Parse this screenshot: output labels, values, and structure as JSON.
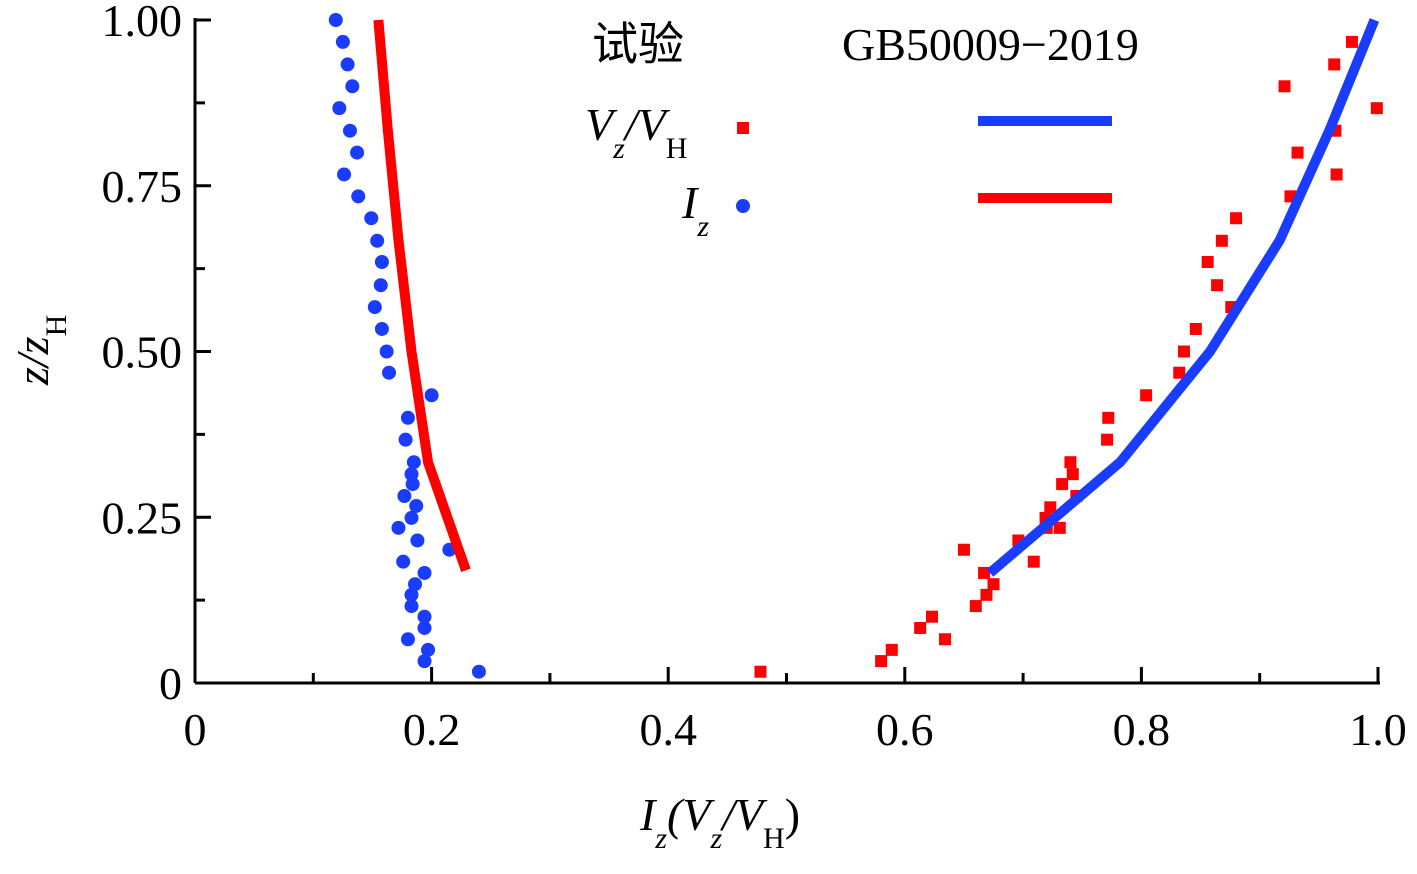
{
  "chart_data": {
    "type": "scatter",
    "title": "",
    "xlabel": {
      "main": "I",
      "sub1": "z",
      "paren_open": "(V",
      "sub2": "z",
      "slash": "/V",
      "sub3": "H",
      "paren_close": ")"
    },
    "ylabel": {
      "main": "z/z",
      "sub": "H"
    },
    "xlim": [
      0,
      1.0
    ],
    "ylim": [
      0,
      1.0
    ],
    "x_ticks": [
      {
        "v": 0,
        "label": "0"
      },
      {
        "v": 0.2,
        "label": "0.2"
      },
      {
        "v": 0.4,
        "label": "0.4"
      },
      {
        "v": 0.6,
        "label": "0.6"
      },
      {
        "v": 0.8,
        "label": "0.8"
      },
      {
        "v": 1.0,
        "label": "1.0"
      }
    ],
    "y_ticks": [
      {
        "v": 0,
        "label": "0"
      },
      {
        "v": 0.25,
        "label": "0.25"
      },
      {
        "v": 0.5,
        "label": "0.50"
      },
      {
        "v": 0.75,
        "label": "0.75"
      },
      {
        "v": 1.0,
        "label": "1.00"
      }
    ],
    "grid": false,
    "legend": {
      "placement": "top-center",
      "col_test": "试验",
      "col_code": "GB50009−2019",
      "rows": [
        {
          "main": "V",
          "sub1": "z",
          "slash": "/V",
          "sub2": "H"
        },
        {
          "main": "I",
          "sub1": "z"
        }
      ]
    },
    "colors": {
      "red": "#ff0000",
      "blue": "#1a3cff"
    },
    "series": [
      {
        "name": "Vz/VH 试验",
        "kind": "square",
        "color": "#ff0000",
        "points": [
          [
            0.478,
            0.017
          ],
          [
            0.58,
            0.033
          ],
          [
            0.589,
            0.05
          ],
          [
            0.613,
            0.083
          ],
          [
            0.623,
            0.1
          ],
          [
            0.634,
            0.066
          ],
          [
            0.66,
            0.116
          ],
          [
            0.669,
            0.133
          ],
          [
            0.675,
            0.149
          ],
          [
            0.667,
            0.166
          ],
          [
            0.65,
            0.201
          ],
          [
            0.709,
            0.183
          ],
          [
            0.696,
            0.215
          ],
          [
            0.72,
            0.234
          ],
          [
            0.719,
            0.249
          ],
          [
            0.723,
            0.265
          ],
          [
            0.731,
            0.234
          ],
          [
            0.733,
            0.3
          ],
          [
            0.74,
            0.333
          ],
          [
            0.742,
            0.315
          ],
          [
            0.745,
            0.282
          ],
          [
            0.772,
            0.4
          ],
          [
            0.771,
            0.367
          ],
          [
            0.804,
            0.434
          ],
          [
            0.832,
            0.468
          ],
          [
            0.836,
            0.5
          ],
          [
            0.846,
            0.534
          ],
          [
            0.856,
            0.635
          ],
          [
            0.864,
            0.6
          ],
          [
            0.868,
            0.667
          ],
          [
            0.88,
            0.701
          ],
          [
            0.876,
            0.567
          ],
          [
            0.926,
            0.734
          ],
          [
            0.932,
            0.8
          ],
          [
            0.965,
            0.767
          ],
          [
            0.964,
            0.833
          ],
          [
            0.963,
            0.933
          ],
          [
            0.921,
            0.9
          ],
          [
            0.978,
            0.967
          ],
          [
            0.999,
            0.867
          ]
        ]
      },
      {
        "name": "Iz 试验",
        "kind": "dot",
        "color": "#1a3cff",
        "points": [
          [
            0.119,
            1.0
          ],
          [
            0.125,
            0.967
          ],
          [
            0.129,
            0.933
          ],
          [
            0.133,
            0.9
          ],
          [
            0.122,
            0.867
          ],
          [
            0.131,
            0.833
          ],
          [
            0.137,
            0.8
          ],
          [
            0.126,
            0.767
          ],
          [
            0.138,
            0.734
          ],
          [
            0.149,
            0.701
          ],
          [
            0.154,
            0.667
          ],
          [
            0.158,
            0.635
          ],
          [
            0.157,
            0.6
          ],
          [
            0.152,
            0.567
          ],
          [
            0.158,
            0.534
          ],
          [
            0.162,
            0.5
          ],
          [
            0.164,
            0.468
          ],
          [
            0.2,
            0.434
          ],
          [
            0.18,
            0.4
          ],
          [
            0.178,
            0.367
          ],
          [
            0.185,
            0.333
          ],
          [
            0.183,
            0.315
          ],
          [
            0.184,
            0.3
          ],
          [
            0.177,
            0.282
          ],
          [
            0.187,
            0.267
          ],
          [
            0.183,
            0.249
          ],
          [
            0.172,
            0.234
          ],
          [
            0.188,
            0.215
          ],
          [
            0.215,
            0.201
          ],
          [
            0.176,
            0.183
          ],
          [
            0.194,
            0.166
          ],
          [
            0.186,
            0.149
          ],
          [
            0.183,
            0.133
          ],
          [
            0.183,
            0.116
          ],
          [
            0.194,
            0.1
          ],
          [
            0.194,
            0.083
          ],
          [
            0.18,
            0.066
          ],
          [
            0.197,
            0.05
          ],
          [
            0.194,
            0.033
          ],
          [
            0.24,
            0.017
          ]
        ]
      },
      {
        "name": "Vz/VH GB50009-2019",
        "kind": "line",
        "color": "#1a3cff",
        "points": [
          [
            0.672,
            0.166
          ],
          [
            0.782,
            0.333
          ],
          [
            0.858,
            0.5
          ],
          [
            0.917,
            0.668
          ],
          [
            0.959,
            0.834
          ],
          [
            0.997,
            1.0
          ]
        ]
      },
      {
        "name": "Iz GB50009-2019",
        "kind": "line",
        "color": "#ff0000",
        "points": [
          [
            0.229,
            0.17
          ],
          [
            0.197,
            0.333
          ],
          [
            0.183,
            0.5
          ],
          [
            0.172,
            0.668
          ],
          [
            0.163,
            0.834
          ],
          [
            0.155,
            1.0
          ]
        ]
      }
    ]
  }
}
